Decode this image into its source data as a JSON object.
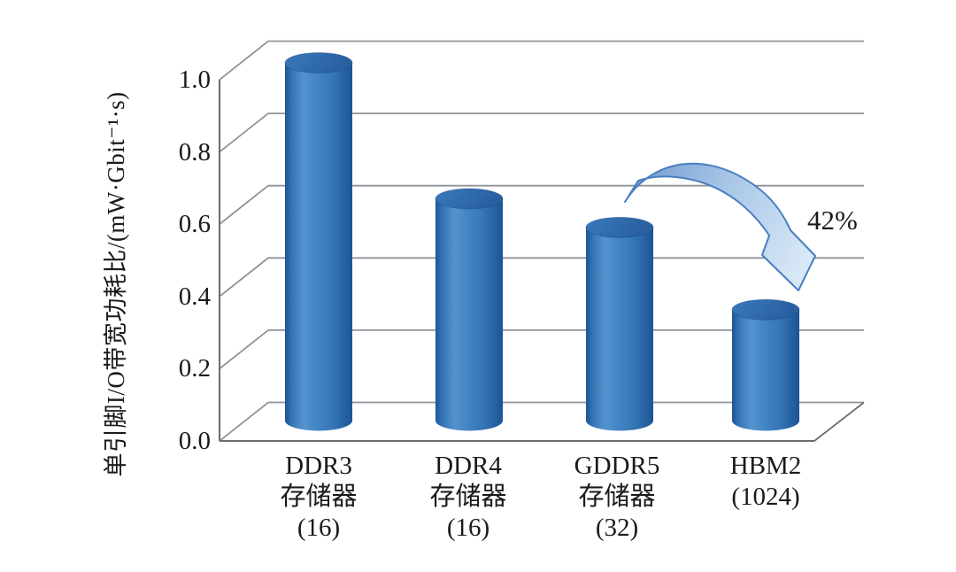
{
  "chart_data": {
    "type": "bar",
    "subtype": "3d-cylinder",
    "title": "",
    "xlabel": "",
    "ylabel": "单引脚I/O带宽功耗比/(mW·Gbit⁻¹·s)",
    "ylim": [
      0.0,
      1.0
    ],
    "ytick_step": 0.2,
    "yticks": [
      "1.0",
      "0.8",
      "0.6",
      "0.4",
      "0.2",
      "0.0"
    ],
    "grid": true,
    "legend": false,
    "categories": [
      "DDR3 存储器 (16)",
      "DDR4 存储器 (16)",
      "GDDR5 存储器 (32)",
      "HBM2 (1024)"
    ],
    "category_lines": [
      [
        "DDR3",
        "存储器",
        "(16)"
      ],
      [
        "DDR4",
        "存储器",
        "(16)"
      ],
      [
        "GDDR5",
        "存储器",
        "(32)"
      ],
      [
        "HBM2",
        "(1024)"
      ]
    ],
    "values": [
      1.0,
      0.62,
      0.54,
      0.31
    ],
    "annotation": {
      "label": "42%"
    },
    "colors": {
      "bar_dark": "#1c5494",
      "bar_mid": "#3575b5",
      "bar_highlight": "#5593cf",
      "bar_top_light": "#3b79bc",
      "bar_top_dark": "#275f9f",
      "arrow_fill_start": "#6f9ad0",
      "arrow_fill_mid": "#a9c6e7",
      "arrow_fill_end": "#dcebf8",
      "arrow_stroke": "#4a7fc1",
      "gridline": "#8f9499",
      "axis": "#6e6e6e",
      "text": "#1a1a1a"
    }
  }
}
